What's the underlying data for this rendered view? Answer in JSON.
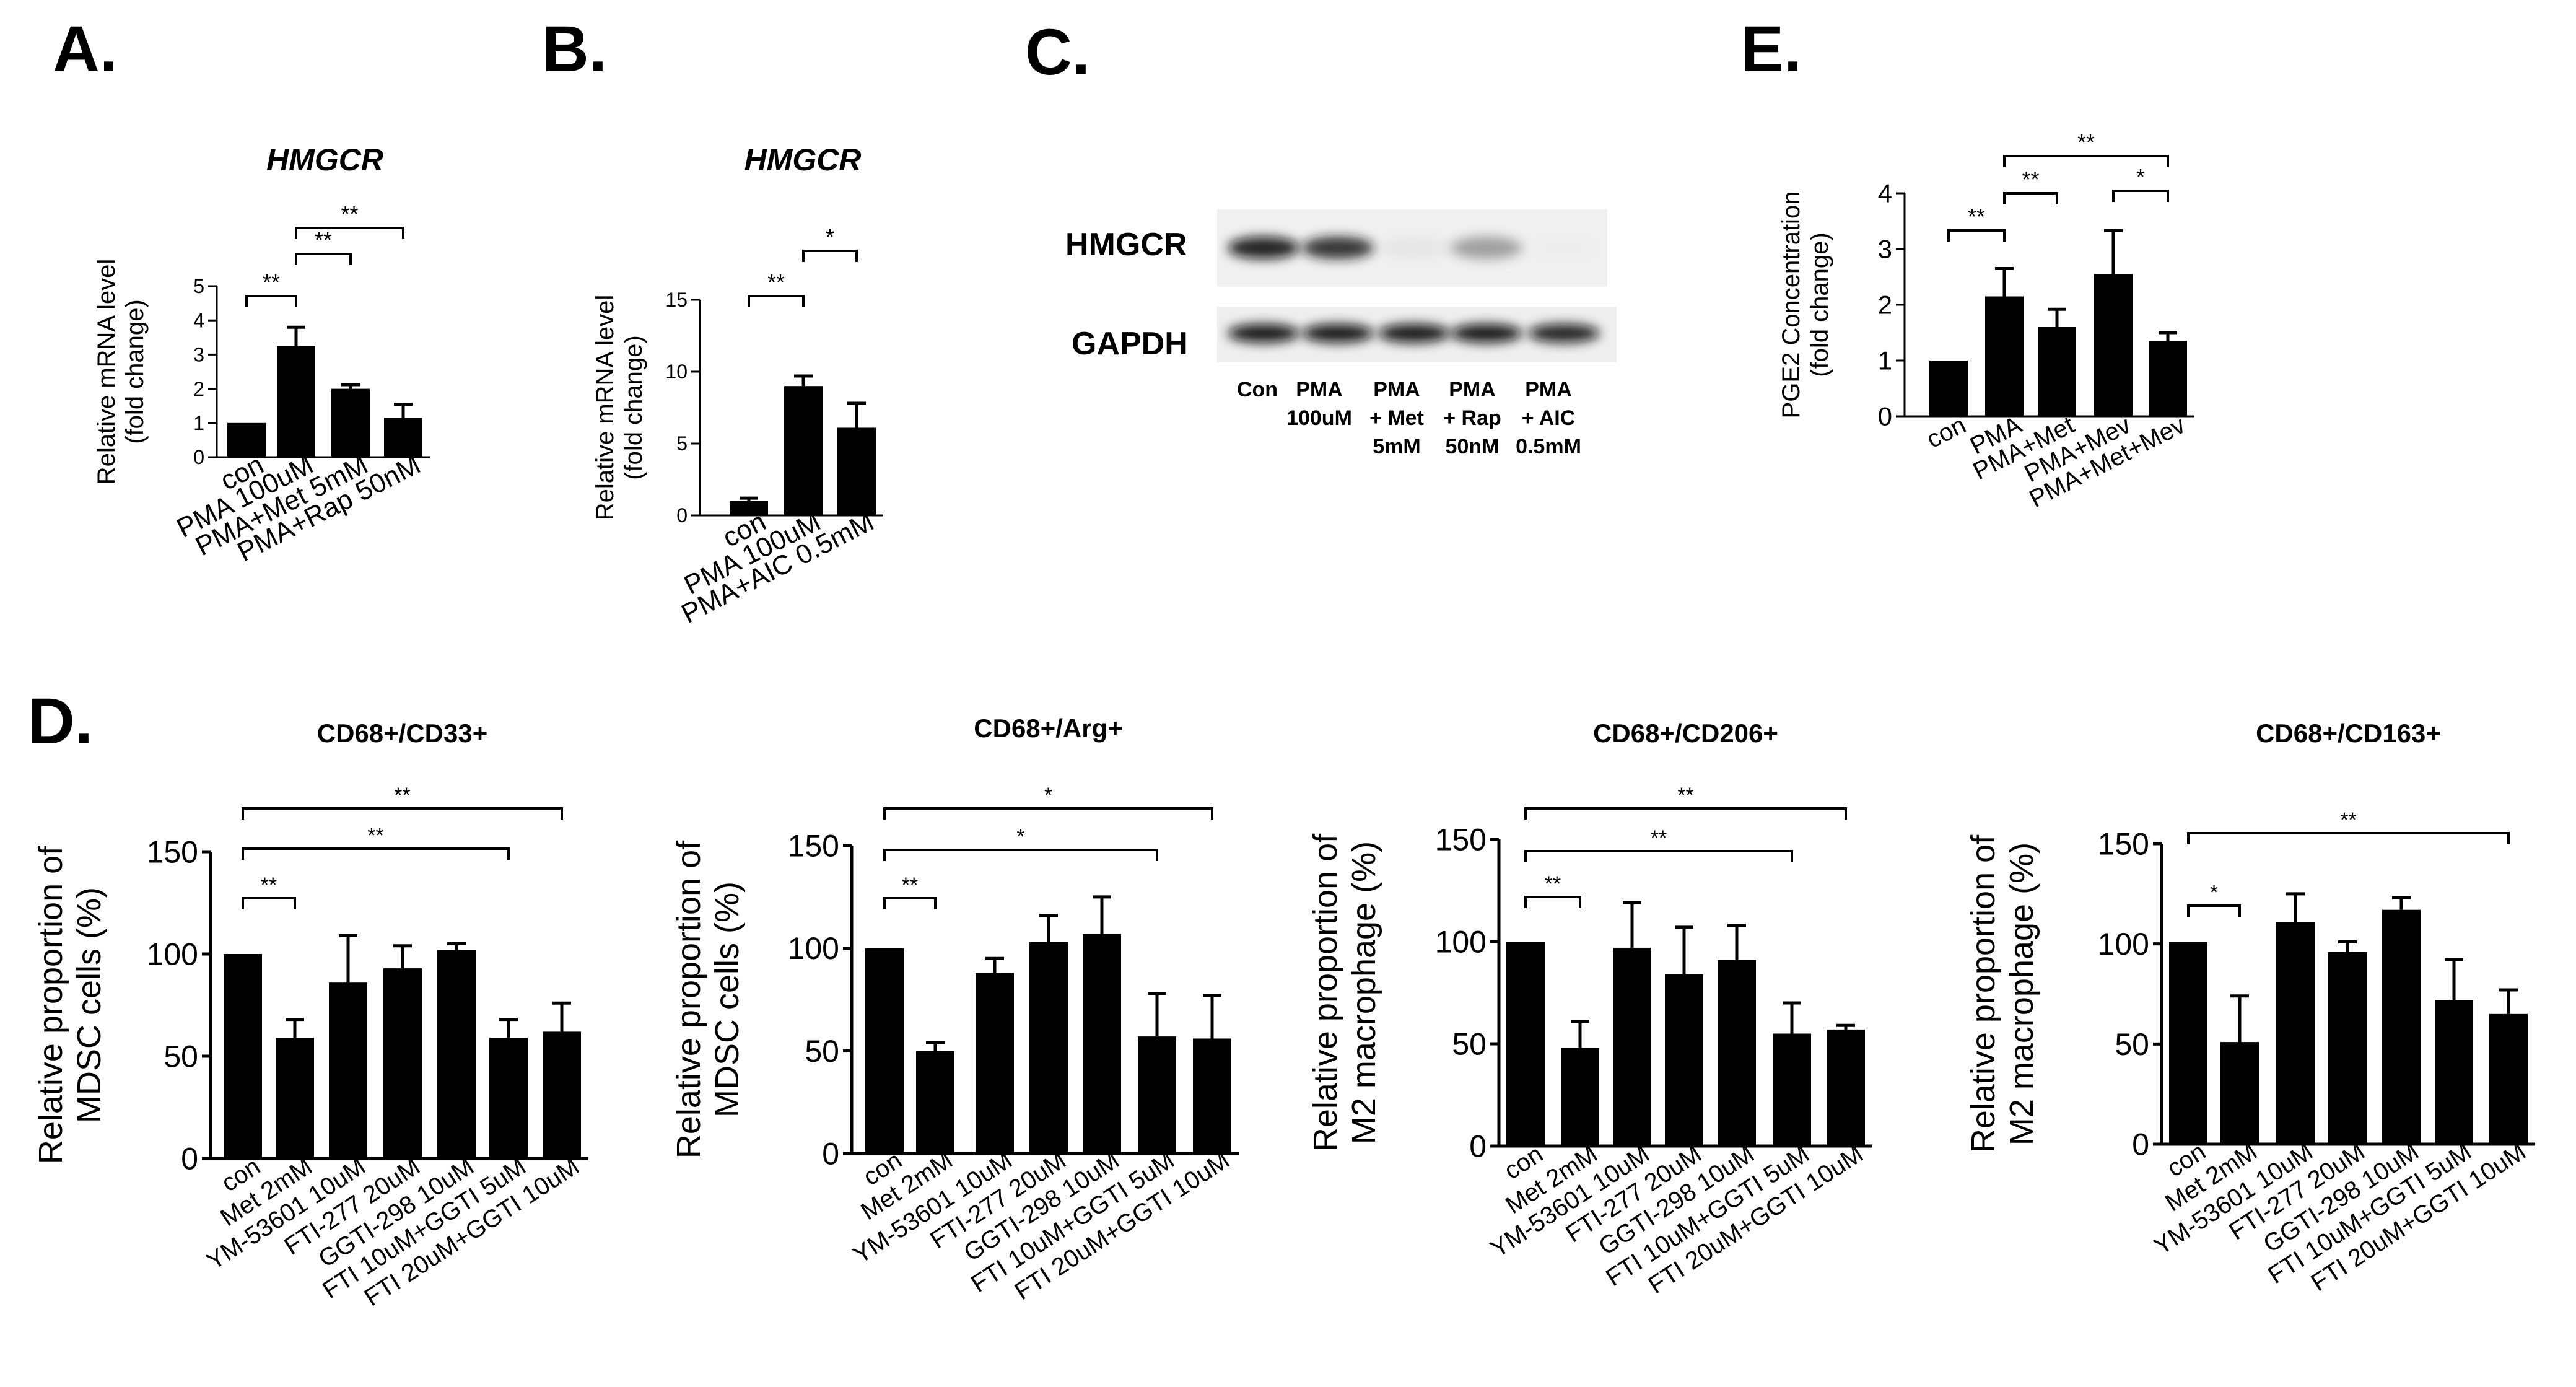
{
  "figure": {
    "panel_letters": {
      "A": "A.",
      "B": "B.",
      "C": "C.",
      "D": "D.",
      "E": "E."
    }
  },
  "chart_data": [
    {
      "panel": "A",
      "type": "bar",
      "title": "HMGCR",
      "title_italic": true,
      "ylabel": [
        "Relative mRNA level",
        "(fold change)"
      ],
      "ylim": [
        0,
        5
      ],
      "yticks": [
        0,
        1,
        2,
        3,
        4,
        5
      ],
      "categories": [
        "con",
        "PMA 100uM",
        "PMA+Met 5mM",
        "PMA+Rap 50nM"
      ],
      "values": [
        1.0,
        3.25,
        2.0,
        1.15
      ],
      "errors": [
        0,
        0.55,
        0.12,
        0.4
      ],
      "significance": [
        {
          "from": 0,
          "to": 1,
          "label": "**"
        },
        {
          "from": 1,
          "to": 2,
          "label": "**"
        },
        {
          "from": 1,
          "to": 3,
          "label": "**"
        }
      ]
    },
    {
      "panel": "B",
      "type": "bar",
      "title": "HMGCR",
      "title_italic": true,
      "ylabel": [
        "Relative mRNA level",
        "(fold change)"
      ],
      "ylim": [
        0,
        15
      ],
      "yticks": [
        0,
        5,
        10,
        15
      ],
      "categories": [
        "con",
        "PMA 100uM",
        "PMA+AIC 0.5mM"
      ],
      "values": [
        1.0,
        9.0,
        6.1
      ],
      "errors": [
        0.2,
        0.7,
        1.7
      ],
      "significance": [
        {
          "from": 0,
          "to": 1,
          "label": "**"
        },
        {
          "from": 1,
          "to": 2,
          "label": "*"
        }
      ]
    },
    {
      "panel": "E",
      "type": "bar",
      "title": "",
      "ylabel": [
        "PGE2 Concentration",
        "(fold change)"
      ],
      "ylim": [
        0,
        4
      ],
      "yticks": [
        0,
        1,
        2,
        3,
        4
      ],
      "categories": [
        "con",
        "PMA",
        "PMA+Met",
        "PMA+Mev",
        "PMA+Met+Mev"
      ],
      "values": [
        1.0,
        2.15,
        1.6,
        2.55,
        1.35
      ],
      "errors": [
        0,
        0.5,
        0.32,
        0.78,
        0.15
      ],
      "significance": [
        {
          "from": 0,
          "to": 1,
          "label": "**"
        },
        {
          "from": 1,
          "to": 2,
          "label": "**"
        },
        {
          "from": 3,
          "to": 4,
          "label": "*"
        },
        {
          "from": 1,
          "to": 4,
          "label": "**"
        }
      ]
    },
    {
      "panel": "D",
      "type": "bar",
      "title": "CD68+/CD33+",
      "ylabel": [
        "Relative proportion of",
        "MDSC cells (%)"
      ],
      "ylim": [
        0,
        150
      ],
      "yticks": [
        0,
        50,
        100,
        150
      ],
      "categories": [
        "con",
        "Met 2mM",
        "YM-53601 10uM",
        "FTI-277 20uM",
        "GGTI-298 10uM",
        "FTI 10uM+GGTI 5uM",
        "FTI 20uM+GGTI 10uM"
      ],
      "values": [
        100,
        59,
        86,
        93,
        102,
        59,
        62
      ],
      "errors": [
        0,
        9,
        23,
        11,
        3,
        9,
        14
      ],
      "significance": [
        {
          "from": 0,
          "to": 1,
          "label": "**"
        },
        {
          "from": 0,
          "to": 5,
          "label": "**"
        },
        {
          "from": 0,
          "to": 6,
          "label": "**"
        }
      ]
    },
    {
      "panel": "D",
      "type": "bar",
      "title": "CD68+/Arg+",
      "ylabel": [
        "Relative proportion of",
        "MDSC cells (%)"
      ],
      "ylim": [
        0,
        150
      ],
      "yticks": [
        0,
        50,
        100,
        150
      ],
      "categories": [
        "con",
        "Met 2mM",
        "YM-53601 10uM",
        "FTI-277 20uM",
        "GGTI-298 10uM",
        "FTI 10uM+GGTI 5uM",
        "FTI 20uM+GGTI 10uM"
      ],
      "values": [
        100,
        50,
        88,
        103,
        107,
        57,
        56
      ],
      "errors": [
        0,
        4,
        7,
        13,
        18,
        21,
        21
      ],
      "significance": [
        {
          "from": 0,
          "to": 1,
          "label": "**"
        },
        {
          "from": 0,
          "to": 5,
          "label": "*"
        },
        {
          "from": 0,
          "to": 6,
          "label": "*"
        }
      ]
    },
    {
      "panel": "D",
      "type": "bar",
      "title": "CD68+/CD206+",
      "ylabel": [
        "Relative proportion of",
        "M2 macrophage (%)"
      ],
      "ylim": [
        0,
        150
      ],
      "yticks": [
        0,
        50,
        100,
        150
      ],
      "categories": [
        "con",
        "Met 2mM",
        "YM-53601 10uM",
        "FTI-277 20uM",
        "GGTI-298 10uM",
        "FTI 10uM+GGTI 5uM",
        "FTI 20uM+GGTI 10uM"
      ],
      "values": [
        100,
        48,
        97,
        84,
        91,
        55,
        57
      ],
      "errors": [
        0,
        13,
        22,
        23,
        17,
        15,
        2
      ],
      "significance": [
        {
          "from": 0,
          "to": 1,
          "label": "**"
        },
        {
          "from": 0,
          "to": 5,
          "label": "**"
        },
        {
          "from": 0,
          "to": 6,
          "label": "**"
        }
      ]
    },
    {
      "panel": "D",
      "type": "bar",
      "title": "CD68+/CD163+",
      "ylabel": [
        "Relative proportion of",
        "M2 macrophage (%)"
      ],
      "ylim": [
        0,
        150
      ],
      "yticks": [
        0,
        50,
        100,
        150
      ],
      "categories": [
        "con",
        "Met 2mM",
        "YM-53601 10uM",
        "FTI-277 20uM",
        "GGTI-298 10uM",
        "FTI 10uM+GGTI 5uM",
        "FTI 20uM+GGTI 10uM"
      ],
      "values": [
        101,
        51,
        111,
        96,
        117,
        72,
        65
      ],
      "errors": [
        0,
        23,
        14,
        5,
        6,
        20,
        12
      ],
      "significance": [
        {
          "from": 0,
          "to": 1,
          "label": "*"
        },
        {
          "from": 0,
          "to": 6,
          "label": "**"
        }
      ]
    }
  ],
  "western_blot": {
    "panel": "C",
    "rows": [
      "HMGCR",
      "GAPDH"
    ],
    "lanes": [
      [
        "Con"
      ],
      [
        "PMA",
        "100uM"
      ],
      [
        "PMA",
        "+ Met",
        "5mM"
      ],
      [
        "PMA",
        "+ Rap",
        "50nM"
      ],
      [
        "PMA",
        "+ AIC",
        "0.5mM"
      ]
    ],
    "band_intensity": {
      "HMGCR": [
        0.9,
        0.85,
        0.18,
        0.55,
        0.05
      ],
      "GAPDH": [
        0.95,
        0.95,
        0.95,
        0.95,
        0.9
      ]
    }
  }
}
